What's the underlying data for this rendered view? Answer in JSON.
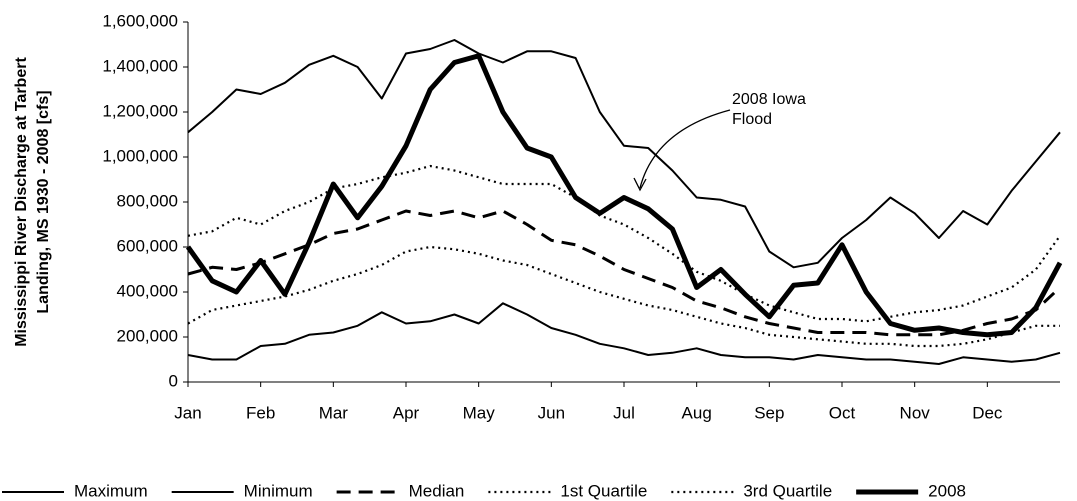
{
  "chart_data": {
    "type": "line",
    "y_label": [
      "Mississippi River Discharge  at Tarbert",
      "Landing, MS 1930 - 2008  [cfs]"
    ],
    "annotation": "2008 Iowa Flood",
    "categories": [
      "Jan",
      null,
      null,
      "Feb",
      null,
      null,
      "Mar",
      null,
      null,
      "Apr",
      null,
      null,
      "May",
      null,
      null,
      "Jun",
      null,
      null,
      "Jul",
      null,
      null,
      "Aug",
      null,
      null,
      "Sep",
      null,
      null,
      "Oct",
      null,
      null,
      "Nov",
      null,
      null,
      "Dec",
      null,
      null,
      null
    ],
    "ylim": [
      0,
      1600000
    ],
    "yticks": [
      0,
      {
        "value": 200000,
        "label": "200,000"
      },
      {
        "value": 400000,
        "label": "400,000"
      },
      {
        "value": 600000,
        "label": "600,000"
      },
      {
        "value": 800000,
        "label": "800,000"
      },
      {
        "value": 1000000,
        "label": "1,000,000"
      },
      {
        "value": 1200000,
        "label": "1,200,000"
      },
      {
        "value": 1400000,
        "label": "1,400,000"
      },
      {
        "value": 1600000,
        "label": "1,600,000"
      }
    ],
    "legend": "bottom",
    "series": [
      {
        "name": "Maximum",
        "color": "#000000",
        "line_style": "solid",
        "values": [
          1110000,
          1200000,
          1300000,
          1280000,
          1330000,
          1410000,
          1450000,
          1400000,
          1260000,
          1460000,
          1480000,
          1520000,
          1460000,
          1420000,
          1470000,
          1470000,
          1440000,
          1200000,
          1050000,
          1040000,
          940000,
          820000,
          810000,
          780000,
          580000,
          510000,
          530000,
          640000,
          720000,
          820000,
          750000,
          640000,
          760000,
          700000,
          850000,
          980000,
          1110000
        ]
      },
      {
        "name": "Minimum",
        "color": "#000000",
        "line_style": "solid",
        "values": [
          120000,
          100000,
          100000,
          160000,
          170000,
          210000,
          220000,
          250000,
          310000,
          260000,
          270000,
          300000,
          260000,
          350000,
          300000,
          240000,
          210000,
          170000,
          150000,
          120000,
          130000,
          150000,
          120000,
          110000,
          110000,
          100000,
          120000,
          110000,
          100000,
          100000,
          90000,
          80000,
          110000,
          100000,
          90000,
          100000,
          130000
        ]
      },
      {
        "name": "Median",
        "color": "#000000",
        "line_style": "dashed",
        "values": [
          480000,
          510000,
          500000,
          530000,
          570000,
          610000,
          660000,
          680000,
          720000,
          760000,
          740000,
          760000,
          730000,
          760000,
          700000,
          630000,
          610000,
          560000,
          500000,
          460000,
          420000,
          360000,
          330000,
          290000,
          260000,
          240000,
          220000,
          220000,
          220000,
          210000,
          210000,
          210000,
          230000,
          260000,
          280000,
          320000,
          420000
        ]
      },
      {
        "name": "1st Quartile",
        "color": "#000000",
        "line_style": "dotted",
        "values": [
          260000,
          320000,
          340000,
          360000,
          380000,
          410000,
          450000,
          480000,
          520000,
          580000,
          600000,
          590000,
          570000,
          540000,
          520000,
          480000,
          440000,
          400000,
          370000,
          340000,
          320000,
          290000,
          260000,
          240000,
          210000,
          200000,
          190000,
          180000,
          170000,
          170000,
          160000,
          160000,
          170000,
          190000,
          220000,
          250000,
          250000
        ]
      },
      {
        "name": "3rd Quartile",
        "color": "#000000",
        "line_style": "dotted",
        "values": [
          650000,
          670000,
          730000,
          700000,
          760000,
          800000,
          860000,
          880000,
          910000,
          930000,
          960000,
          940000,
          910000,
          880000,
          880000,
          880000,
          820000,
          740000,
          700000,
          640000,
          570000,
          490000,
          450000,
          390000,
          340000,
          310000,
          280000,
          280000,
          270000,
          290000,
          310000,
          320000,
          340000,
          380000,
          420000,
          500000,
          650000
        ]
      },
      {
        "name": "2008",
        "color": "#000000",
        "line_style": "bold",
        "values": [
          600000,
          450000,
          400000,
          540000,
          390000,
          620000,
          880000,
          730000,
          870000,
          1050000,
          1300000,
          1420000,
          1450000,
          1200000,
          1040000,
          1000000,
          820000,
          750000,
          820000,
          770000,
          680000,
          420000,
          500000,
          390000,
          290000,
          430000,
          440000,
          610000,
          400000,
          260000,
          230000,
          240000,
          220000,
          210000,
          220000,
          330000,
          530000
        ]
      }
    ]
  }
}
